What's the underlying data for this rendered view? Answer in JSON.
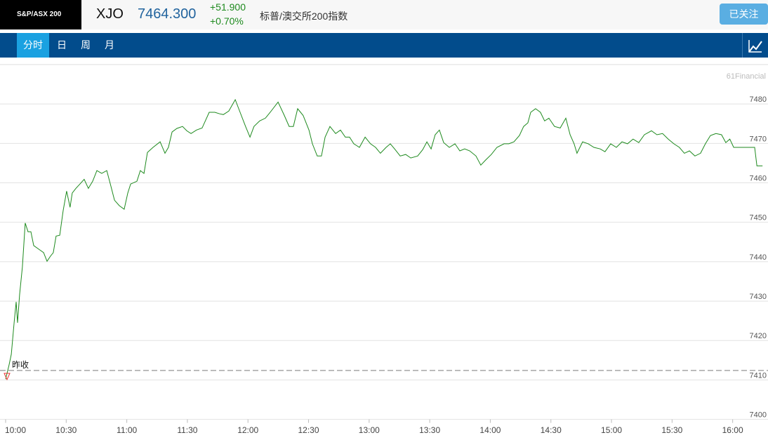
{
  "header": {
    "logo": "S&P/ASX 200",
    "symbol": "XJO",
    "price": "7464.300",
    "change": "+51.900",
    "change_pct": "+0.70%",
    "name": "标普/澳交所200指数",
    "follow_button": "已关注"
  },
  "tabs": [
    "分时",
    "日",
    "周",
    "月"
  ],
  "chart_data": {
    "type": "line",
    "watermark": "61Financial",
    "prev_close": 7412.4,
    "prev_close_label": "昨收",
    "x": [
      0,
      1.7,
      2.8,
      4.2,
      5.2,
      5.9,
      6.9,
      8.3,
      9.7,
      11.1,
      12.5,
      13.9,
      16.3,
      18.8,
      20.5,
      22.2,
      23.6,
      25.0,
      26.8,
      28.5,
      30.2,
      31.9,
      33.0,
      34.8,
      36.8,
      38.9,
      41.0,
      43.1,
      45.2,
      47.6,
      50.1,
      52.1,
      53.9,
      56.3,
      58.7,
      60.5,
      61.9,
      65.0,
      66.7,
      68.5,
      70.2,
      73.0,
      76.5,
      78.9,
      80.6,
      82.4,
      84.8,
      87.6,
      89.7,
      91.8,
      94.5,
      97.3,
      100.8,
      103.6,
      106.0,
      107.8,
      110.5,
      113.7,
      116.1,
      118.8,
      121.0,
      123.0,
      125.8,
      128.6,
      131.0,
      134.9,
      138.0,
      140.4,
      142.5,
      144.6,
      147.3,
      150.2,
      151.9,
      154.3,
      156.4,
      158.2,
      160.6,
      163.4,
      165.8,
      168.2,
      170.3,
      172.4,
      175.2,
      178.0,
      180.7,
      183.2,
      185.6,
      188.4,
      190.5,
      192.6,
      195.4,
      198.1,
      200.6,
      204.0,
      206.5,
      208.6,
      210.7,
      212.7,
      214.8,
      216.9,
      219.7,
      222.5,
      224.9,
      227.3,
      229.8,
      232.9,
      235.3,
      237.7,
      240.5,
      243.3,
      246.8,
      249.2,
      251.7,
      254.4,
      256.5,
      258.6,
      260.0,
      262.4,
      264.8,
      266.9,
      269.0,
      271.8,
      274.6,
      277.4,
      279.5,
      281.5,
      282.9,
      285.7,
      288.5,
      291.3,
      294.4,
      296.8,
      299.6,
      302.4,
      305.2,
      307.9,
      310.7,
      313.5,
      316.3,
      319.8,
      322.5,
      325.3,
      328.1,
      330.9,
      333.6,
      336.1,
      338.6,
      341.3,
      344.1,
      346.5,
      349.0,
      351.7,
      354.5,
      356.6,
      358.6,
      360.5,
      365.7,
      370.9,
      372.0,
      374.8
    ],
    "series": [
      {
        "name": "XJO",
        "color": "#1e8a1e",
        "values": [
          7410.2,
          7413.8,
          7416.5,
          7424.5,
          7429.8,
          7424.5,
          7431.6,
          7438.7,
          7449.8,
          7447.6,
          7447.6,
          7444.1,
          7443.2,
          7442.3,
          7440.1,
          7441.4,
          7442.3,
          7446.5,
          7446.7,
          7453.0,
          7457.9,
          7453.8,
          7457.4,
          7458.6,
          7459.7,
          7460.9,
          7458.6,
          7460.4,
          7463.1,
          7462.4,
          7463.1,
          7459.2,
          7455.6,
          7454.2,
          7453.3,
          7457.4,
          7459.7,
          7460.4,
          7463.1,
          7462.4,
          7467.7,
          7469.0,
          7470.4,
          7467.5,
          7469.0,
          7472.9,
          7473.8,
          7474.3,
          7473.2,
          7472.5,
          7473.4,
          7473.9,
          7477.9,
          7477.9,
          7477.5,
          7477.3,
          7478.2,
          7481.1,
          7477.9,
          7474.3,
          7471.6,
          7474.3,
          7475.7,
          7476.4,
          7477.9,
          7480.5,
          7477.1,
          7474.3,
          7474.3,
          7478.8,
          7477.1,
          7473.4,
          7469.9,
          7466.8,
          7466.8,
          7471.6,
          7474.3,
          7472.5,
          7473.4,
          7471.6,
          7471.6,
          7469.9,
          7469.0,
          7471.6,
          7469.9,
          7469.0,
          7467.5,
          7469.0,
          7469.9,
          7468.6,
          7466.8,
          7467.2,
          7466.3,
          7466.8,
          7468.4,
          7470.4,
          7468.6,
          7472.2,
          7473.4,
          7470.2,
          7469.0,
          7469.9,
          7468.1,
          7468.6,
          7468.1,
          7466.8,
          7464.5,
          7465.8,
          7467.2,
          7469.0,
          7469.9,
          7469.9,
          7470.4,
          7472.0,
          7474.3,
          7475.2,
          7477.9,
          7478.8,
          7477.9,
          7475.7,
          7476.4,
          7474.3,
          7473.9,
          7476.4,
          7472.2,
          7469.9,
          7467.5,
          7470.4,
          7469.9,
          7469.0,
          7468.6,
          7467.9,
          7469.9,
          7469.0,
          7470.4,
          7469.9,
          7471.1,
          7470.2,
          7472.2,
          7473.2,
          7472.2,
          7472.5,
          7471.1,
          7469.9,
          7469.0,
          7467.5,
          7468.1,
          7466.8,
          7467.5,
          7469.9,
          7472.0,
          7472.5,
          7472.2,
          7470.2,
          7471.1,
          7469.0,
          7469.0,
          7469.0,
          7464.3,
          7464.3
        ]
      }
    ],
    "xlim": [
      0,
      377.5
    ],
    "xticks": [
      {
        "value": 0,
        "label": "10:00"
      },
      {
        "value": 30,
        "label": "10:30"
      },
      {
        "value": 60,
        "label": "11:00"
      },
      {
        "value": 90,
        "label": "11:30"
      },
      {
        "value": 120,
        "label": "12:00"
      },
      {
        "value": 150,
        "label": "12:30"
      },
      {
        "value": 180,
        "label": "13:00"
      },
      {
        "value": 210,
        "label": "13:30"
      },
      {
        "value": 240,
        "label": "14:00"
      },
      {
        "value": 270,
        "label": "14:30"
      },
      {
        "value": 300,
        "label": "15:00"
      },
      {
        "value": 330,
        "label": "15:30"
      },
      {
        "value": 360,
        "label": "16:00"
      }
    ],
    "ylim": [
      7400,
      7490
    ],
    "yticks": [
      7400,
      7410,
      7420,
      7430,
      7440,
      7450,
      7460,
      7470,
      7480
    ],
    "grid": true
  }
}
